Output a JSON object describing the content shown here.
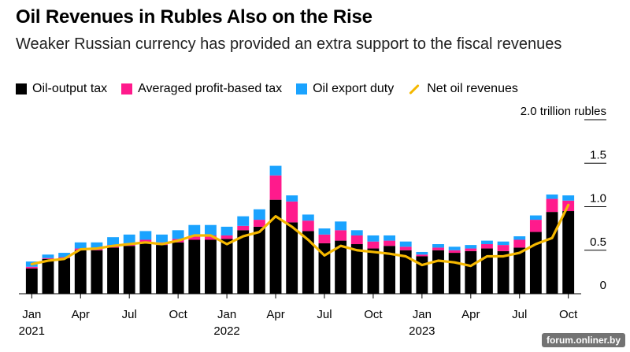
{
  "title": "Oil Revenues in Rubles Also on the Rise",
  "subtitle": "Weaker Russian currency has provided an extra support to the fiscal revenues",
  "legend": {
    "oil_output_tax": "Oil-output tax",
    "profit_tax": "Averaged profit-based tax",
    "export_duty": "Oil export duty",
    "net_oil_revenues": "Net oil revenues"
  },
  "colors": {
    "oil_output_tax": "#000000",
    "profit_tax": "#ff1a8c",
    "export_duty": "#1aa3ff",
    "net_oil_revenues": "#f5b800"
  },
  "watermark": "forum.onliner.by",
  "chart_data": {
    "type": "bar",
    "stacked": true,
    "unit_label": "2.0 trillion rubles",
    "y_ticks": [
      "0",
      "0.5",
      "1.0",
      "1.5",
      "2.0 trillion rubles"
    ],
    "ylim": [
      0,
      2.0
    ],
    "x_tick_labels": [
      {
        "index": 0,
        "month": "Jan",
        "year": "2021"
      },
      {
        "index": 3,
        "month": "Apr",
        "year": ""
      },
      {
        "index": 6,
        "month": "Jul",
        "year": ""
      },
      {
        "index": 9,
        "month": "Oct",
        "year": ""
      },
      {
        "index": 12,
        "month": "Jan",
        "year": "2022"
      },
      {
        "index": 15,
        "month": "Apr",
        "year": ""
      },
      {
        "index": 18,
        "month": "Jul",
        "year": ""
      },
      {
        "index": 21,
        "month": "Oct",
        "year": ""
      },
      {
        "index": 24,
        "month": "Jan",
        "year": "2023"
      },
      {
        "index": 27,
        "month": "Apr",
        "year": ""
      },
      {
        "index": 30,
        "month": "Jul",
        "year": ""
      },
      {
        "index": 33,
        "month": "Oct",
        "year": ""
      }
    ],
    "categories": [
      "Jan 2021",
      "Feb 2021",
      "Mar 2021",
      "Apr 2021",
      "May 2021",
      "Jun 2021",
      "Jul 2021",
      "Aug 2021",
      "Sep 2021",
      "Oct 2021",
      "Nov 2021",
      "Dec 2021",
      "Jan 2022",
      "Feb 2022",
      "Mar 2022",
      "Apr 2022",
      "May 2022",
      "Jun 2022",
      "Jul 2022",
      "Aug 2022",
      "Sep 2022",
      "Oct 2022",
      "Nov 2022",
      "Dec 2022",
      "Jan 2023",
      "Feb 2023",
      "Mar 2023",
      "Apr 2023",
      "May 2023",
      "Jun 2023",
      "Jul 2023",
      "Aug 2023",
      "Sep 2023",
      "Oct 2023"
    ],
    "series": [
      {
        "name": "Oil-output tax",
        "key": "oil_output_tax",
        "values": [
          0.29,
          0.4,
          0.41,
          0.5,
          0.5,
          0.53,
          0.55,
          0.58,
          0.56,
          0.59,
          0.62,
          0.62,
          0.63,
          0.73,
          0.77,
          1.08,
          0.82,
          0.72,
          0.58,
          0.61,
          0.57,
          0.52,
          0.55,
          0.5,
          0.43,
          0.5,
          0.47,
          0.49,
          0.52,
          0.49,
          0.53,
          0.71,
          0.94,
          0.95
        ]
      },
      {
        "name": "Averaged profit-based tax",
        "key": "profit_tax",
        "values": [
          0.02,
          0.01,
          0.01,
          0.02,
          0.02,
          0.03,
          0.03,
          0.04,
          0.03,
          0.04,
          0.05,
          0.05,
          0.04,
          0.05,
          0.08,
          0.28,
          0.24,
          0.12,
          0.1,
          0.12,
          0.1,
          0.08,
          0.06,
          0.04,
          0.02,
          0.03,
          0.03,
          0.03,
          0.05,
          0.07,
          0.09,
          0.14,
          0.15,
          0.12
        ]
      },
      {
        "name": "Oil export duty",
        "key": "export_duty",
        "values": [
          0.06,
          0.04,
          0.05,
          0.07,
          0.07,
          0.09,
          0.1,
          0.1,
          0.09,
          0.1,
          0.12,
          0.12,
          0.1,
          0.11,
          0.12,
          0.11,
          0.07,
          0.07,
          0.07,
          0.1,
          0.06,
          0.07,
          0.06,
          0.06,
          0.03,
          0.04,
          0.04,
          0.04,
          0.04,
          0.04,
          0.04,
          0.05,
          0.05,
          0.06
        ]
      }
    ],
    "line": {
      "name": "Net oil revenues",
      "key": "net_oil_revenues",
      "values": [
        0.34,
        0.38,
        0.4,
        0.51,
        0.52,
        0.55,
        0.57,
        0.59,
        0.57,
        0.61,
        0.67,
        0.67,
        0.57,
        0.66,
        0.71,
        0.89,
        0.77,
        0.62,
        0.44,
        0.55,
        0.5,
        0.48,
        0.46,
        0.43,
        0.33,
        0.38,
        0.36,
        0.32,
        0.43,
        0.43,
        0.47,
        0.57,
        0.64,
        1.02
      ]
    }
  }
}
